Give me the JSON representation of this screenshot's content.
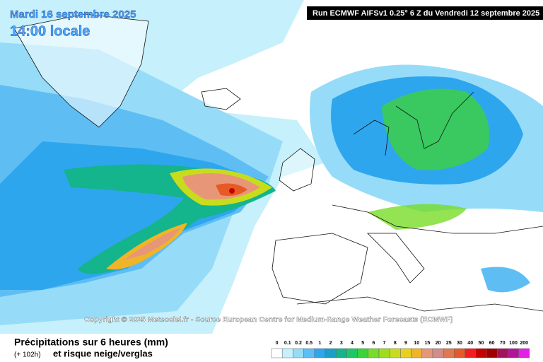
{
  "header": {
    "date": "Mardi 16 septembre 2025",
    "time": "14:00 locale",
    "run": "Run ECMWF AIFSv1 0.25° 6 Z du Vendredi 12 septembre 2025"
  },
  "copyright": "Copyright © 2025 Meteociel.fr - Source European Centre for Medium-Range Weather Forecasts (ECMWF)",
  "footer": {
    "title": "Précipitations sur 6 heures (mm)",
    "lead": "(+ 102h)",
    "subtitle": "et risque neige/verglas"
  },
  "legend": {
    "items": [
      {
        "label": "0",
        "color": "#ffffff"
      },
      {
        "label": "0.1",
        "color": "#c6f0fb"
      },
      {
        "label": "0.2",
        "color": "#96dcf8"
      },
      {
        "label": "0.5",
        "color": "#5ebef3"
      },
      {
        "label": "1",
        "color": "#2ea6ee"
      },
      {
        "label": "2",
        "color": "#1aa0c8"
      },
      {
        "label": "3",
        "color": "#14b48c"
      },
      {
        "label": "4",
        "color": "#1ec864"
      },
      {
        "label": "5",
        "color": "#3cd23c"
      },
      {
        "label": "6",
        "color": "#78dc28"
      },
      {
        "label": "7",
        "color": "#a0dc1e"
      },
      {
        "label": "8",
        "color": "#c8dc1e"
      },
      {
        "label": "9",
        "color": "#e6d21e"
      },
      {
        "label": "10",
        "color": "#f0b428"
      },
      {
        "label": "15",
        "color": "#e89678"
      },
      {
        "label": "20",
        "color": "#d28c8c"
      },
      {
        "label": "25",
        "color": "#e07850"
      },
      {
        "label": "30",
        "color": "#e65a28"
      },
      {
        "label": "40",
        "color": "#f01e1e"
      },
      {
        "label": "50",
        "color": "#c80000"
      },
      {
        "label": "60",
        "color": "#a00000"
      },
      {
        "label": "70",
        "color": "#a0145a"
      },
      {
        "label": "100",
        "color": "#b4149b"
      },
      {
        "label": "200",
        "color": "#e61ee6"
      }
    ]
  }
}
